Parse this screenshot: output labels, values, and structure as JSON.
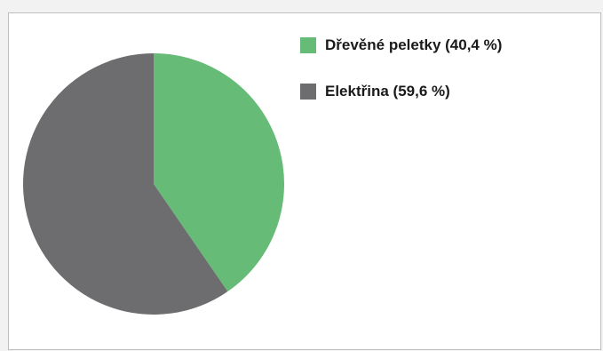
{
  "chart_data": {
    "type": "pie",
    "title": "",
    "legend_position": "right",
    "slices": [
      {
        "label": "Dřevěné peletky (40,4 %)",
        "value": 40.4,
        "color": "#66bb77"
      },
      {
        "label": "Elektřina (59,6 %)",
        "value": 59.6,
        "color": "#6d6d6f"
      }
    ]
  }
}
